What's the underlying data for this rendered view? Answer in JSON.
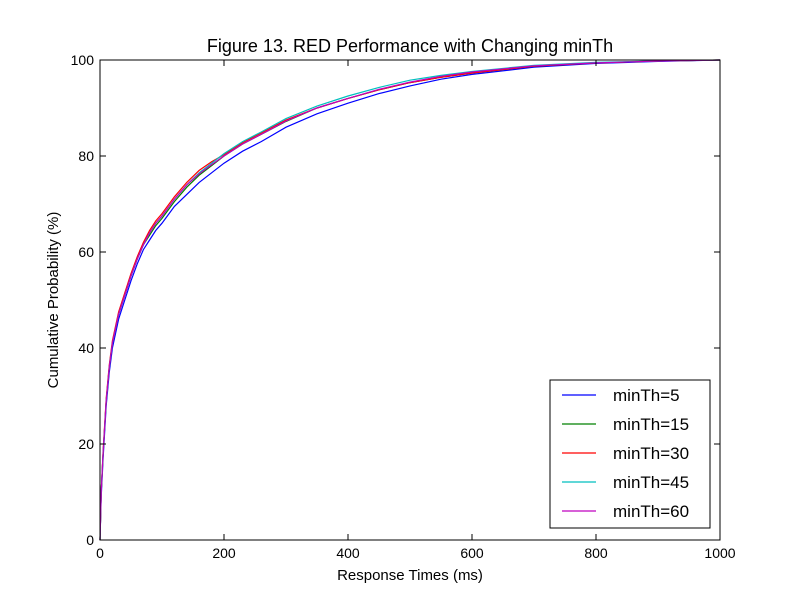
{
  "chart_data": {
    "type": "line",
    "title": "Figure 13. RED Performance with Changing minTh",
    "xlabel": "Response Times (ms)",
    "ylabel": "Cumulative Probability (%)",
    "xlim": [
      0,
      1000
    ],
    "ylim": [
      0,
      100
    ],
    "xticks": [
      0,
      200,
      400,
      600,
      800,
      1000
    ],
    "yticks": [
      0,
      20,
      40,
      60,
      80,
      100
    ],
    "grid": false,
    "legend_position": "bottom-right",
    "x": [
      0,
      2,
      5,
      10,
      15,
      20,
      30,
      40,
      50,
      60,
      70,
      80,
      90,
      100,
      120,
      140,
      160,
      180,
      200,
      230,
      260,
      300,
      350,
      400,
      450,
      500,
      550,
      600,
      700,
      800,
      900,
      1000
    ],
    "series": [
      {
        "name": "minTh=5",
        "color": "#0000ff",
        "values": [
          0,
          9,
          17,
          28,
          35,
          40,
          46,
          50,
          54,
          57.5,
          60.5,
          62.5,
          64.5,
          66,
          69.5,
          72,
          74.5,
          76.5,
          78.5,
          81,
          83,
          86,
          88.8,
          91,
          93,
          94.6,
          96,
          97,
          98.5,
          99.3,
          99.7,
          100
        ]
      },
      {
        "name": "minTh=15",
        "color": "#008000",
        "values": [
          0,
          10,
          18,
          29,
          36,
          41,
          47,
          51,
          55,
          58.5,
          61.5,
          63.5,
          65.5,
          67,
          70.5,
          73.5,
          76,
          78,
          80,
          82.5,
          84.5,
          87.2,
          90,
          92,
          93.8,
          95.3,
          96.4,
          97.3,
          98.7,
          99.4,
          99.8,
          100
        ]
      },
      {
        "name": "minTh=30",
        "color": "#ff0000",
        "values": [
          0,
          10,
          18.5,
          29.5,
          36.5,
          41.5,
          47.5,
          51.5,
          55.5,
          59,
          62,
          64.5,
          66.5,
          68,
          71.5,
          74.5,
          77,
          78.8,
          80.3,
          82.8,
          84.8,
          87.5,
          90,
          92,
          93.8,
          95.3,
          96.4,
          97.3,
          98.7,
          99.4,
          99.8,
          100
        ]
      },
      {
        "name": "minTh=45",
        "color": "#00bfbf",
        "values": [
          0,
          10,
          18,
          29,
          36,
          41,
          47,
          51,
          55,
          58.5,
          61.5,
          64,
          66,
          67.5,
          71,
          74,
          76.5,
          78.5,
          80.5,
          83,
          85,
          87.8,
          90.4,
          92.5,
          94.3,
          95.8,
          96.8,
          97.6,
          98.9,
          99.5,
          99.8,
          100
        ]
      },
      {
        "name": "minTh=60",
        "color": "#bf00bf",
        "values": [
          0,
          10,
          18,
          29,
          36,
          41,
          47,
          51,
          55,
          58.5,
          61.5,
          64,
          66,
          67.5,
          71,
          74,
          76.3,
          78.2,
          80,
          82.5,
          84.5,
          87.3,
          90,
          92,
          93.9,
          95.4,
          96.6,
          97.5,
          98.8,
          99.4,
          99.8,
          100
        ]
      }
    ]
  }
}
